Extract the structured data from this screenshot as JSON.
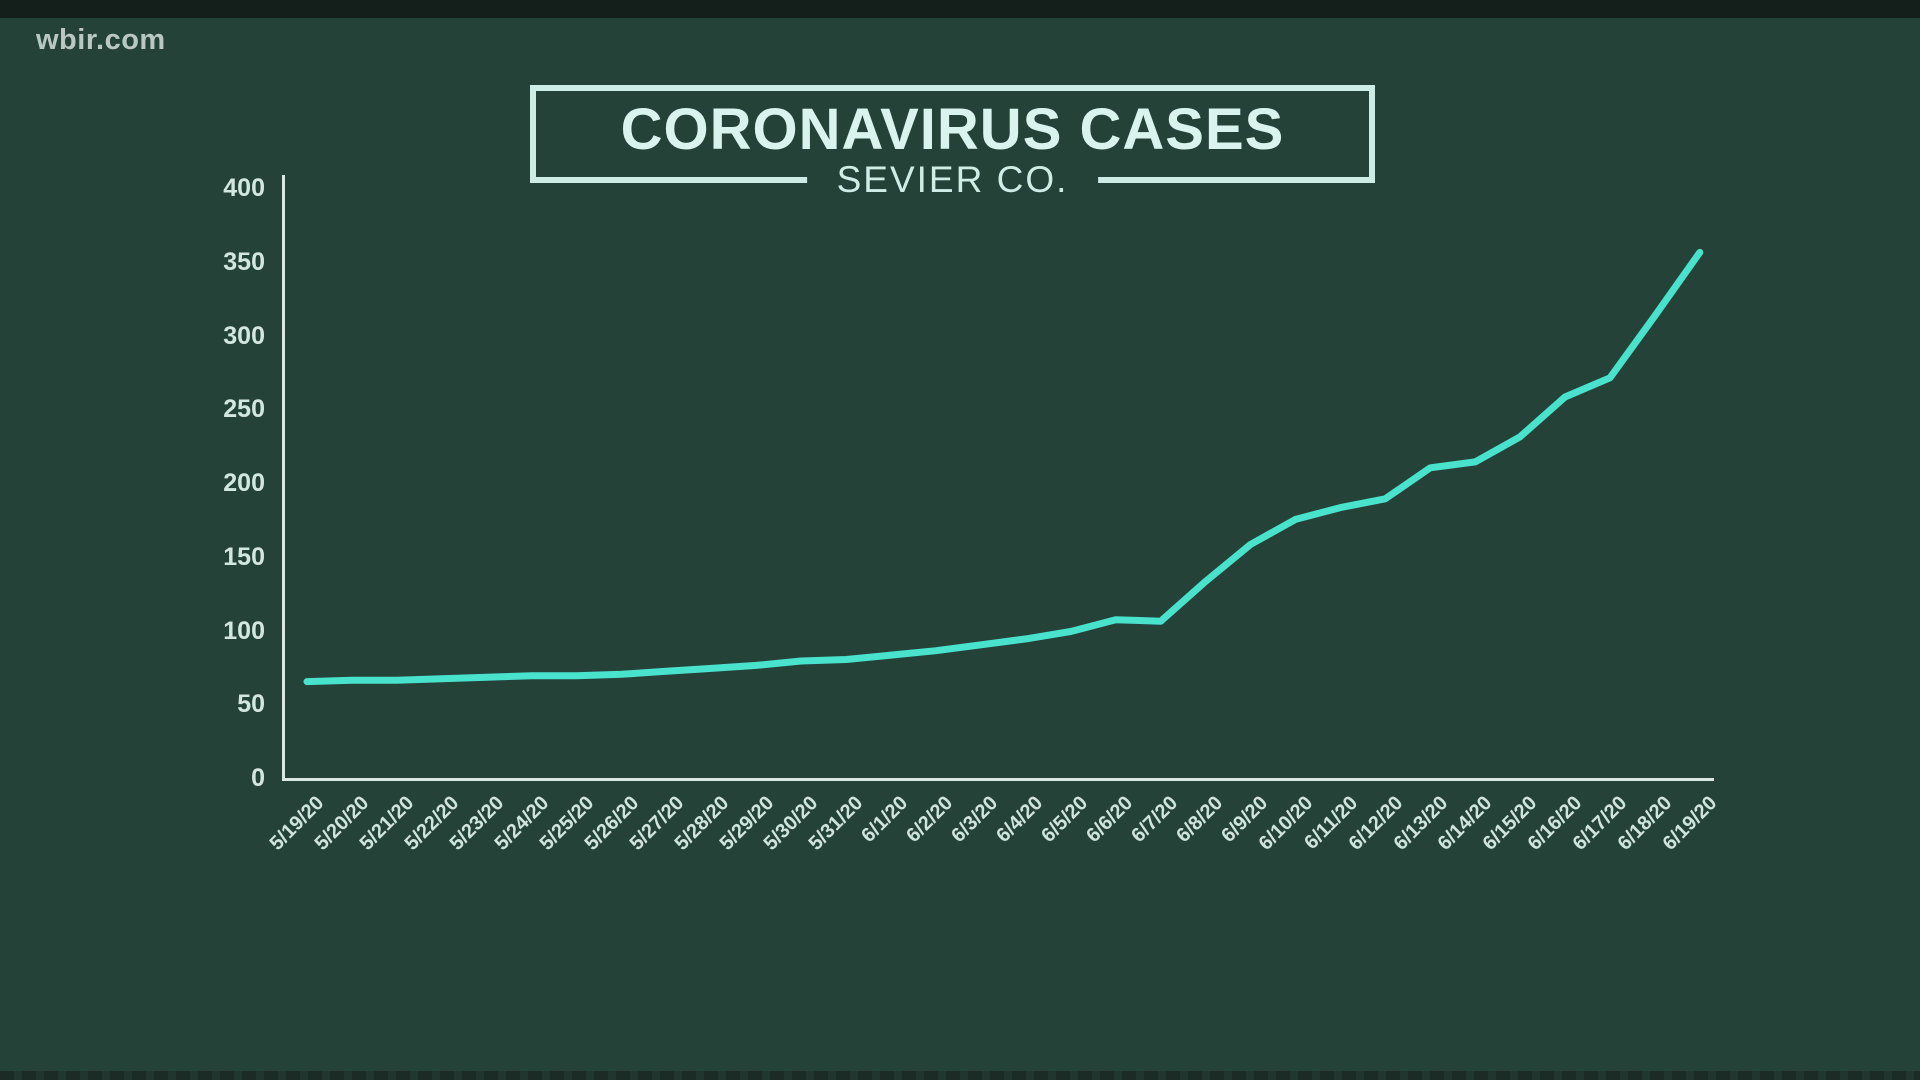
{
  "station": {
    "logo_text": "wbir.com"
  },
  "title_box": {
    "title": "CORONAVIRUS CASES",
    "subtitle": "SEVIER CO."
  },
  "colors": {
    "background": "#254239",
    "top_bar": "#141f1c",
    "line": "#49e2cd",
    "axis": "#d9e8e3",
    "tick_text": "#d3e7e1",
    "title_text": "#d9f4ec",
    "title_border": "#cdede4",
    "logo_text": "#b9c8c3"
  },
  "chart_data": {
    "type": "line",
    "title": "CORONAVIRUS CASES",
    "subtitle": "SEVIER CO.",
    "xlabel": "",
    "ylabel": "",
    "ylim": [
      0,
      400
    ],
    "yticks": [
      0,
      50,
      100,
      150,
      200,
      250,
      300,
      350,
      400
    ],
    "grid": false,
    "legend": false,
    "line_color": "#49e2cd",
    "x": [
      "5/19/20",
      "5/20/20",
      "5/21/20",
      "5/22/20",
      "5/23/20",
      "5/24/20",
      "5/25/20",
      "5/26/20",
      "5/27/20",
      "5/28/20",
      "5/29/20",
      "5/30/20",
      "5/31/20",
      "6/1/20",
      "6/2/20",
      "6/3/20",
      "6/4/20",
      "6/5/20",
      "6/6/20",
      "6/7/20",
      "6/8/20",
      "6/9/20",
      "6/10/20",
      "6/11/20",
      "6/12/20",
      "6/13/20",
      "6/14/20",
      "6/15/20",
      "6/16/20",
      "6/17/20",
      "6/18/20",
      "6/19/20"
    ],
    "series": [
      {
        "name": "Coronavirus cases",
        "values": [
          66,
          67,
          67,
          68,
          69,
          70,
          70,
          71,
          73,
          75,
          77,
          80,
          81,
          84,
          87,
          91,
          95,
          100,
          108,
          107,
          134,
          159,
          176,
          184,
          190,
          211,
          215,
          232,
          259,
          272,
          314,
          357
        ]
      }
    ]
  }
}
